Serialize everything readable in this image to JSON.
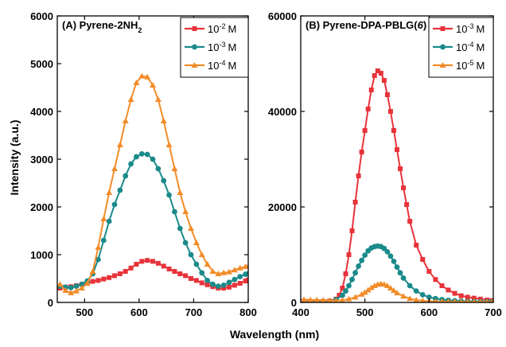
{
  "figure": {
    "xlabel": "Wavelength (nm)",
    "ylabel": "Intensity (a.u.)"
  },
  "chart_data": [
    {
      "type": "line",
      "title": "(A) Pyrene-2NH",
      "title_subscript": "2",
      "xlabel": "Wavelength (nm)",
      "ylabel": "Intensity (a.u.)",
      "xlim": [
        450,
        800
      ],
      "ylim": [
        0,
        6000
      ],
      "xticks": [
        500,
        600,
        700,
        800
      ],
      "yticks": [
        0,
        1000,
        2000,
        3000,
        4000,
        5000,
        6000
      ],
      "legend_position": "top-right",
      "series": [
        {
          "base": "10",
          "exp": "-2",
          "unit": "M",
          "color": "#e8333a",
          "marker": "square",
          "x": [
            455,
            465,
            475,
            485,
            495,
            505,
            515,
            525,
            535,
            545,
            555,
            565,
            575,
            585,
            595,
            605,
            615,
            625,
            635,
            645,
            655,
            665,
            675,
            685,
            695,
            705,
            715,
            725,
            735,
            745,
            755,
            765,
            775,
            785,
            795,
            800
          ],
          "y": [
            300,
            320,
            330,
            350,
            380,
            410,
            440,
            460,
            490,
            520,
            560,
            600,
            650,
            720,
            800,
            860,
            880,
            860,
            820,
            760,
            700,
            650,
            600,
            560,
            500,
            460,
            410,
            370,
            330,
            300,
            300,
            320,
            360,
            400,
            450,
            470
          ]
        },
        {
          "base": "10",
          "exp": "-3",
          "unit": "M",
          "color": "#1a8a8a",
          "marker": "circle",
          "x": [
            455,
            465,
            475,
            485,
            495,
            505,
            515,
            525,
            535,
            545,
            555,
            565,
            575,
            585,
            595,
            605,
            615,
            625,
            635,
            645,
            655,
            665,
            675,
            685,
            695,
            705,
            715,
            725,
            735,
            745,
            755,
            765,
            775,
            785,
            795,
            800
          ],
          "y": [
            340,
            320,
            310,
            340,
            380,
            450,
            600,
            900,
            1300,
            1700,
            2050,
            2350,
            2650,
            2900,
            3050,
            3110,
            3100,
            3000,
            2800,
            2550,
            2250,
            1900,
            1550,
            1250,
            1000,
            800,
            620,
            460,
            380,
            340,
            360,
            420,
            480,
            540,
            590,
            600
          ]
        },
        {
          "base": "10",
          "exp": "-4",
          "unit": "M",
          "color": "#f28c28",
          "marker": "triangle",
          "x": [
            455,
            465,
            475,
            485,
            495,
            505,
            515,
            525,
            535,
            545,
            555,
            565,
            575,
            585,
            595,
            605,
            615,
            625,
            635,
            645,
            655,
            665,
            675,
            685,
            695,
            705,
            715,
            725,
            735,
            745,
            755,
            765,
            775,
            785,
            795,
            800
          ],
          "y": [
            380,
            250,
            200,
            240,
            300,
            400,
            650,
            1150,
            1750,
            2300,
            2800,
            3300,
            3800,
            4250,
            4600,
            4740,
            4720,
            4550,
            4250,
            3800,
            3300,
            2800,
            2300,
            1900,
            1550,
            1250,
            1000,
            800,
            650,
            600,
            620,
            640,
            680,
            720,
            750,
            760
          ]
        }
      ]
    },
    {
      "type": "line",
      "title": "(B) Pyrene-DPA-PBLG(",
      "title_italic": "6",
      "title_suffix": ")",
      "xlabel": "Wavelength (nm)",
      "ylabel": "",
      "xlim": [
        400,
        700
      ],
      "ylim": [
        0,
        60000
      ],
      "xticks": [
        400,
        500,
        600,
        700
      ],
      "yticks": [
        0,
        20000,
        40000,
        60000
      ],
      "legend_position": "top-right",
      "series": [
        {
          "base": "10",
          "exp": "-3",
          "unit": "M",
          "color": "#e8333a",
          "marker": "square",
          "x": [
            405,
            415,
            425,
            435,
            445,
            455,
            460,
            465,
            470,
            475,
            480,
            485,
            490,
            495,
            500,
            505,
            510,
            515,
            520,
            525,
            530,
            535,
            540,
            545,
            550,
            555,
            560,
            565,
            570,
            580,
            590,
            600,
            610,
            620,
            630,
            640,
            650,
            660,
            670,
            680,
            690,
            698
          ],
          "y": [
            200,
            200,
            200,
            220,
            300,
            700,
            1500,
            3000,
            6000,
            10000,
            15000,
            21000,
            26500,
            31500,
            36000,
            40500,
            44500,
            47500,
            48500,
            48000,
            46500,
            43500,
            40000,
            36000,
            32000,
            28000,
            24000,
            20500,
            17000,
            12000,
            9000,
            6500,
            4800,
            3500,
            2600,
            1900,
            1400,
            1100,
            900,
            700,
            500,
            400
          ]
        },
        {
          "base": "10",
          "exp": "-4",
          "unit": "M",
          "color": "#1a8a8a",
          "marker": "circle",
          "x": [
            405,
            415,
            425,
            435,
            445,
            455,
            465,
            470,
            475,
            480,
            485,
            490,
            495,
            500,
            505,
            510,
            515,
            520,
            525,
            530,
            535,
            540,
            545,
            550,
            555,
            560,
            570,
            580,
            590,
            600,
            610,
            620,
            630,
            640,
            650,
            660,
            670,
            680,
            690,
            698
          ],
          "y": [
            100,
            100,
            100,
            120,
            200,
            600,
            1500,
            2400,
            3500,
            4800,
            6200,
            7600,
            8800,
            9900,
            10800,
            11400,
            11700,
            11800,
            11700,
            11300,
            10600,
            9700,
            8600,
            7400,
            6200,
            5100,
            3500,
            2400,
            1600,
            1100,
            800,
            600,
            450,
            350,
            280,
            230,
            200,
            180,
            160,
            150
          ]
        },
        {
          "base": "10",
          "exp": "-5",
          "unit": "M",
          "color": "#f28c28",
          "marker": "triangle",
          "x": [
            405,
            415,
            425,
            435,
            445,
            455,
            465,
            475,
            485,
            495,
            500,
            505,
            510,
            515,
            520,
            525,
            530,
            535,
            540,
            545,
            550,
            560,
            570,
            580,
            590,
            600,
            610,
            620,
            630,
            640,
            650,
            660,
            670,
            680,
            690,
            698
          ],
          "y": [
            600,
            550,
            500,
            450,
            400,
            350,
            450,
            700,
            1100,
            1700,
            2100,
            2600,
            3100,
            3500,
            3800,
            3900,
            3800,
            3500,
            3000,
            2500,
            2000,
            1300,
            800,
            500,
            350,
            250,
            200,
            180,
            160,
            150,
            140,
            130,
            120,
            110,
            100,
            100
          ]
        }
      ]
    }
  ]
}
